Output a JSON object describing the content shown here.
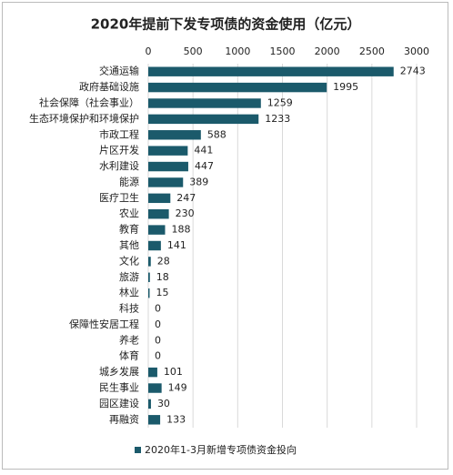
{
  "chart_data": {
    "type": "hbar",
    "title": "2020年提前下发专项债的资金使用（亿元）",
    "categories": [
      "交通运输",
      "政府基础设施",
      "社会保障（社会事业）",
      "生态环境保护和环境保护",
      "市政工程",
      "片区开发",
      "水利建设",
      "能源",
      "医疗卫生",
      "农业",
      "教育",
      "其他",
      "文化",
      "旅游",
      "林业",
      "科技",
      "保障性安居工程",
      "养老",
      "体育",
      "城乡发展",
      "民生事业",
      "园区建设",
      "再融资"
    ],
    "series": [
      {
        "name": "2020年1-3月新增专项债资金投向",
        "color": "#1b5a6b",
        "values": [
          2743,
          1995,
          1259,
          1233,
          588,
          441,
          447,
          389,
          247,
          230,
          188,
          141,
          28,
          18,
          15,
          0,
          0,
          0,
          0,
          101,
          149,
          30,
          133
        ]
      }
    ],
    "xlim": [
      0,
      3000
    ],
    "xticks": [
      0,
      500,
      1000,
      1500,
      2000,
      2500,
      3000
    ],
    "grid": true,
    "legend": "bottom"
  }
}
